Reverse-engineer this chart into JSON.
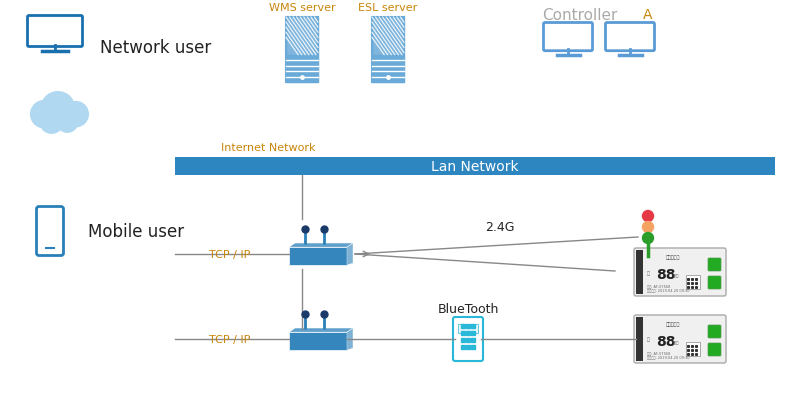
{
  "bg_color": "#ffffff",
  "lan_bar_color": "#2e86c1",
  "lan_bar_text": "Lan Network",
  "lan_bar_text_color": "#ffffff",
  "internet_network_text": "Internet Network",
  "internet_network_color": "#c8860a",
  "wms_server_text": "WMS server",
  "esl_server_text": "ESL server",
  "server_text_color": "#c8860a",
  "controller_text": "Controller",
  "controller_text_color": "#aaaaaa",
  "network_user_text": "Network user",
  "mobile_user_text": "Mobile user",
  "tcp_ip_text": "TCP / IP",
  "tcp_ip_color": "#c8860a",
  "g24_text": "2.4G",
  "bluetooth_text": "BlueTooth",
  "monitor_color": "#1a6faf",
  "cloud_color": "#a8d4f0",
  "phone_color": "#2980b9",
  "server_color": "#6aaad8",
  "controller_color": "#5b9bd5",
  "router_color": "#2980b9",
  "light_red": "#e63946",
  "light_orange": "#f4a261",
  "light_green": "#2a9d2a",
  "a_text": "A",
  "line_color": "#888888",
  "text_color": "#222222"
}
